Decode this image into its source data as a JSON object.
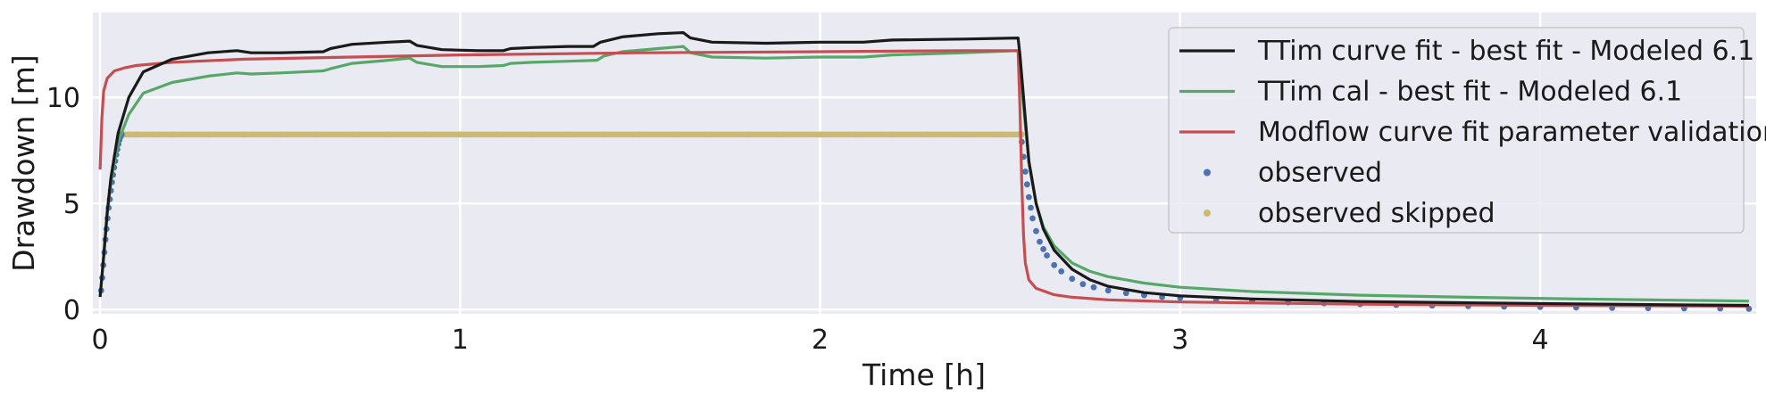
{
  "chart_data": {
    "type": "line",
    "title": "",
    "xlabel": "Time [h]",
    "ylabel": "Drawdown [m]",
    "xlim": [
      -0.02,
      4.6
    ],
    "ylim": [
      -0.2,
      14
    ],
    "xticks": [
      0,
      1,
      2,
      3,
      4
    ],
    "yticks": [
      0,
      5,
      10
    ],
    "grid": true,
    "legend_position": "top-right",
    "background": "#eaeaf2",
    "series": [
      {
        "name": "TTim curve fit - best fit - Modeled 6.1",
        "kind": "line",
        "color": "#1a1a1a",
        "x": [
          0.0,
          0.01,
          0.02,
          0.03,
          0.05,
          0.08,
          0.12,
          0.2,
          0.3,
          0.38,
          0.42,
          0.5,
          0.62,
          0.64,
          0.7,
          0.8,
          0.86,
          0.88,
          0.95,
          1.05,
          1.12,
          1.14,
          1.2,
          1.3,
          1.37,
          1.39,
          1.45,
          1.55,
          1.62,
          1.64,
          1.7,
          1.85,
          2.0,
          2.12,
          2.2,
          2.4,
          2.55,
          2.555,
          2.56,
          2.57,
          2.58,
          2.6,
          2.62,
          2.65,
          2.7,
          2.75,
          2.8,
          2.9,
          3.0,
          3.2,
          3.5,
          3.8,
          4.1,
          4.4,
          4.58
        ],
        "y": [
          0.6,
          2.5,
          4.6,
          6.2,
          8.3,
          10.0,
          11.2,
          11.8,
          12.1,
          12.2,
          12.1,
          12.1,
          12.15,
          12.3,
          12.5,
          12.6,
          12.65,
          12.45,
          12.25,
          12.2,
          12.2,
          12.3,
          12.35,
          12.4,
          12.4,
          12.6,
          12.85,
          13.0,
          13.05,
          12.8,
          12.6,
          12.55,
          12.6,
          12.6,
          12.7,
          12.75,
          12.8,
          12.0,
          11.0,
          9.0,
          7.0,
          5.0,
          3.8,
          2.8,
          1.9,
          1.4,
          1.1,
          0.8,
          0.65,
          0.5,
          0.38,
          0.32,
          0.27,
          0.22,
          0.2
        ]
      },
      {
        "name": "TTim cal - best fit - Modeled 6.1",
        "kind": "line",
        "color": "#55a868",
        "x": [
          0.0,
          0.01,
          0.02,
          0.03,
          0.05,
          0.08,
          0.12,
          0.2,
          0.3,
          0.38,
          0.42,
          0.5,
          0.62,
          0.64,
          0.7,
          0.8,
          0.86,
          0.88,
          0.95,
          1.05,
          1.12,
          1.14,
          1.2,
          1.3,
          1.38,
          1.4,
          1.45,
          1.55,
          1.62,
          1.64,
          1.7,
          1.85,
          2.0,
          2.12,
          2.2,
          2.4,
          2.55,
          2.555,
          2.56,
          2.57,
          2.58,
          2.6,
          2.62,
          2.65,
          2.7,
          2.75,
          2.8,
          2.9,
          3.0,
          3.2,
          3.5,
          3.8,
          4.1,
          4.4,
          4.58
        ],
        "y": [
          0.6,
          2.5,
          4.5,
          6.0,
          7.9,
          9.2,
          10.2,
          10.7,
          11.0,
          11.15,
          11.1,
          11.15,
          11.25,
          11.35,
          11.6,
          11.75,
          11.85,
          11.65,
          11.45,
          11.45,
          11.5,
          11.6,
          11.65,
          11.7,
          11.75,
          11.95,
          12.15,
          12.3,
          12.4,
          12.1,
          11.9,
          11.85,
          11.9,
          11.9,
          12.0,
          12.1,
          12.2,
          11.5,
          10.5,
          8.7,
          6.9,
          5.0,
          3.9,
          3.0,
          2.2,
          1.8,
          1.55,
          1.25,
          1.05,
          0.85,
          0.68,
          0.58,
          0.5,
          0.44,
          0.4
        ]
      },
      {
        "name": "Modflow curve fit parameter validation",
        "kind": "line",
        "color": "#c44e52",
        "x": [
          0.0,
          0.005,
          0.01,
          0.02,
          0.04,
          0.07,
          0.1,
          0.2,
          0.4,
          0.7,
          1.0,
          1.5,
          2.0,
          2.4,
          2.55,
          2.555,
          2.56,
          2.565,
          2.57,
          2.58,
          2.6,
          2.65,
          2.7,
          2.8,
          3.0,
          3.5,
          4.0,
          4.58
        ],
        "y": [
          6.6,
          9.0,
          10.3,
          10.9,
          11.25,
          11.4,
          11.5,
          11.65,
          11.8,
          11.9,
          12.0,
          12.1,
          12.15,
          12.2,
          12.2,
          9.5,
          6.0,
          3.5,
          2.2,
          1.4,
          1.0,
          0.7,
          0.58,
          0.46,
          0.36,
          0.26,
          0.2,
          0.16
        ]
      },
      {
        "name": "observed",
        "kind": "points",
        "color": "#4c72b0",
        "x": [
          0.003,
          0.006,
          0.009,
          0.012,
          0.015,
          0.018,
          0.021,
          0.024,
          0.027,
          0.03,
          0.033,
          0.036,
          0.039,
          0.042,
          0.045,
          0.048,
          0.051,
          0.054,
          0.057,
          0.06,
          2.56,
          2.565,
          2.57,
          2.575,
          2.58,
          2.585,
          2.59,
          2.6,
          2.61,
          2.62,
          2.63,
          2.65,
          2.67,
          2.7,
          2.73,
          2.76,
          2.8,
          2.85,
          2.9,
          2.95,
          3.0,
          3.1,
          3.2,
          3.3,
          3.4,
          3.5,
          3.6,
          3.7,
          3.8,
          3.9,
          4.0,
          4.1,
          4.2,
          4.3,
          4.4,
          4.5,
          4.58
        ],
        "y": [
          0.9,
          1.5,
          2.1,
          2.7,
          3.3,
          3.8,
          4.3,
          4.8,
          5.2,
          5.6,
          6.0,
          6.35,
          6.7,
          7.0,
          7.3,
          7.55,
          7.8,
          8.0,
          8.15,
          8.25,
          7.9,
          7.2,
          6.5,
          5.9,
          5.3,
          4.8,
          4.3,
          3.7,
          3.2,
          2.85,
          2.55,
          2.1,
          1.8,
          1.45,
          1.2,
          1.05,
          0.9,
          0.78,
          0.68,
          0.6,
          0.55,
          0.46,
          0.4,
          0.34,
          0.3,
          0.26,
          0.22,
          0.19,
          0.16,
          0.14,
          0.12,
          0.1,
          0.08,
          0.07,
          0.06,
          0.05,
          0.04
        ]
      },
      {
        "name": "observed skipped",
        "kind": "points",
        "color": "#ccb974",
        "x": [
          0.06,
          0.08,
          0.1,
          0.15,
          0.2,
          0.3,
          0.4,
          0.5,
          0.6,
          0.7,
          0.8,
          0.9,
          1.0,
          1.1,
          1.2,
          1.3,
          1.4,
          1.5,
          1.6,
          1.7,
          1.8,
          1.9,
          2.0,
          2.1,
          2.2,
          2.3,
          2.4,
          2.5,
          2.56
        ],
        "y": [
          8.25,
          8.25,
          8.25,
          8.25,
          8.25,
          8.25,
          8.25,
          8.25,
          8.25,
          8.25,
          8.25,
          8.25,
          8.25,
          8.25,
          8.25,
          8.25,
          8.25,
          8.25,
          8.25,
          8.25,
          8.25,
          8.25,
          8.25,
          8.25,
          8.25,
          8.25,
          8.25,
          8.25,
          8.25
        ]
      }
    ]
  }
}
